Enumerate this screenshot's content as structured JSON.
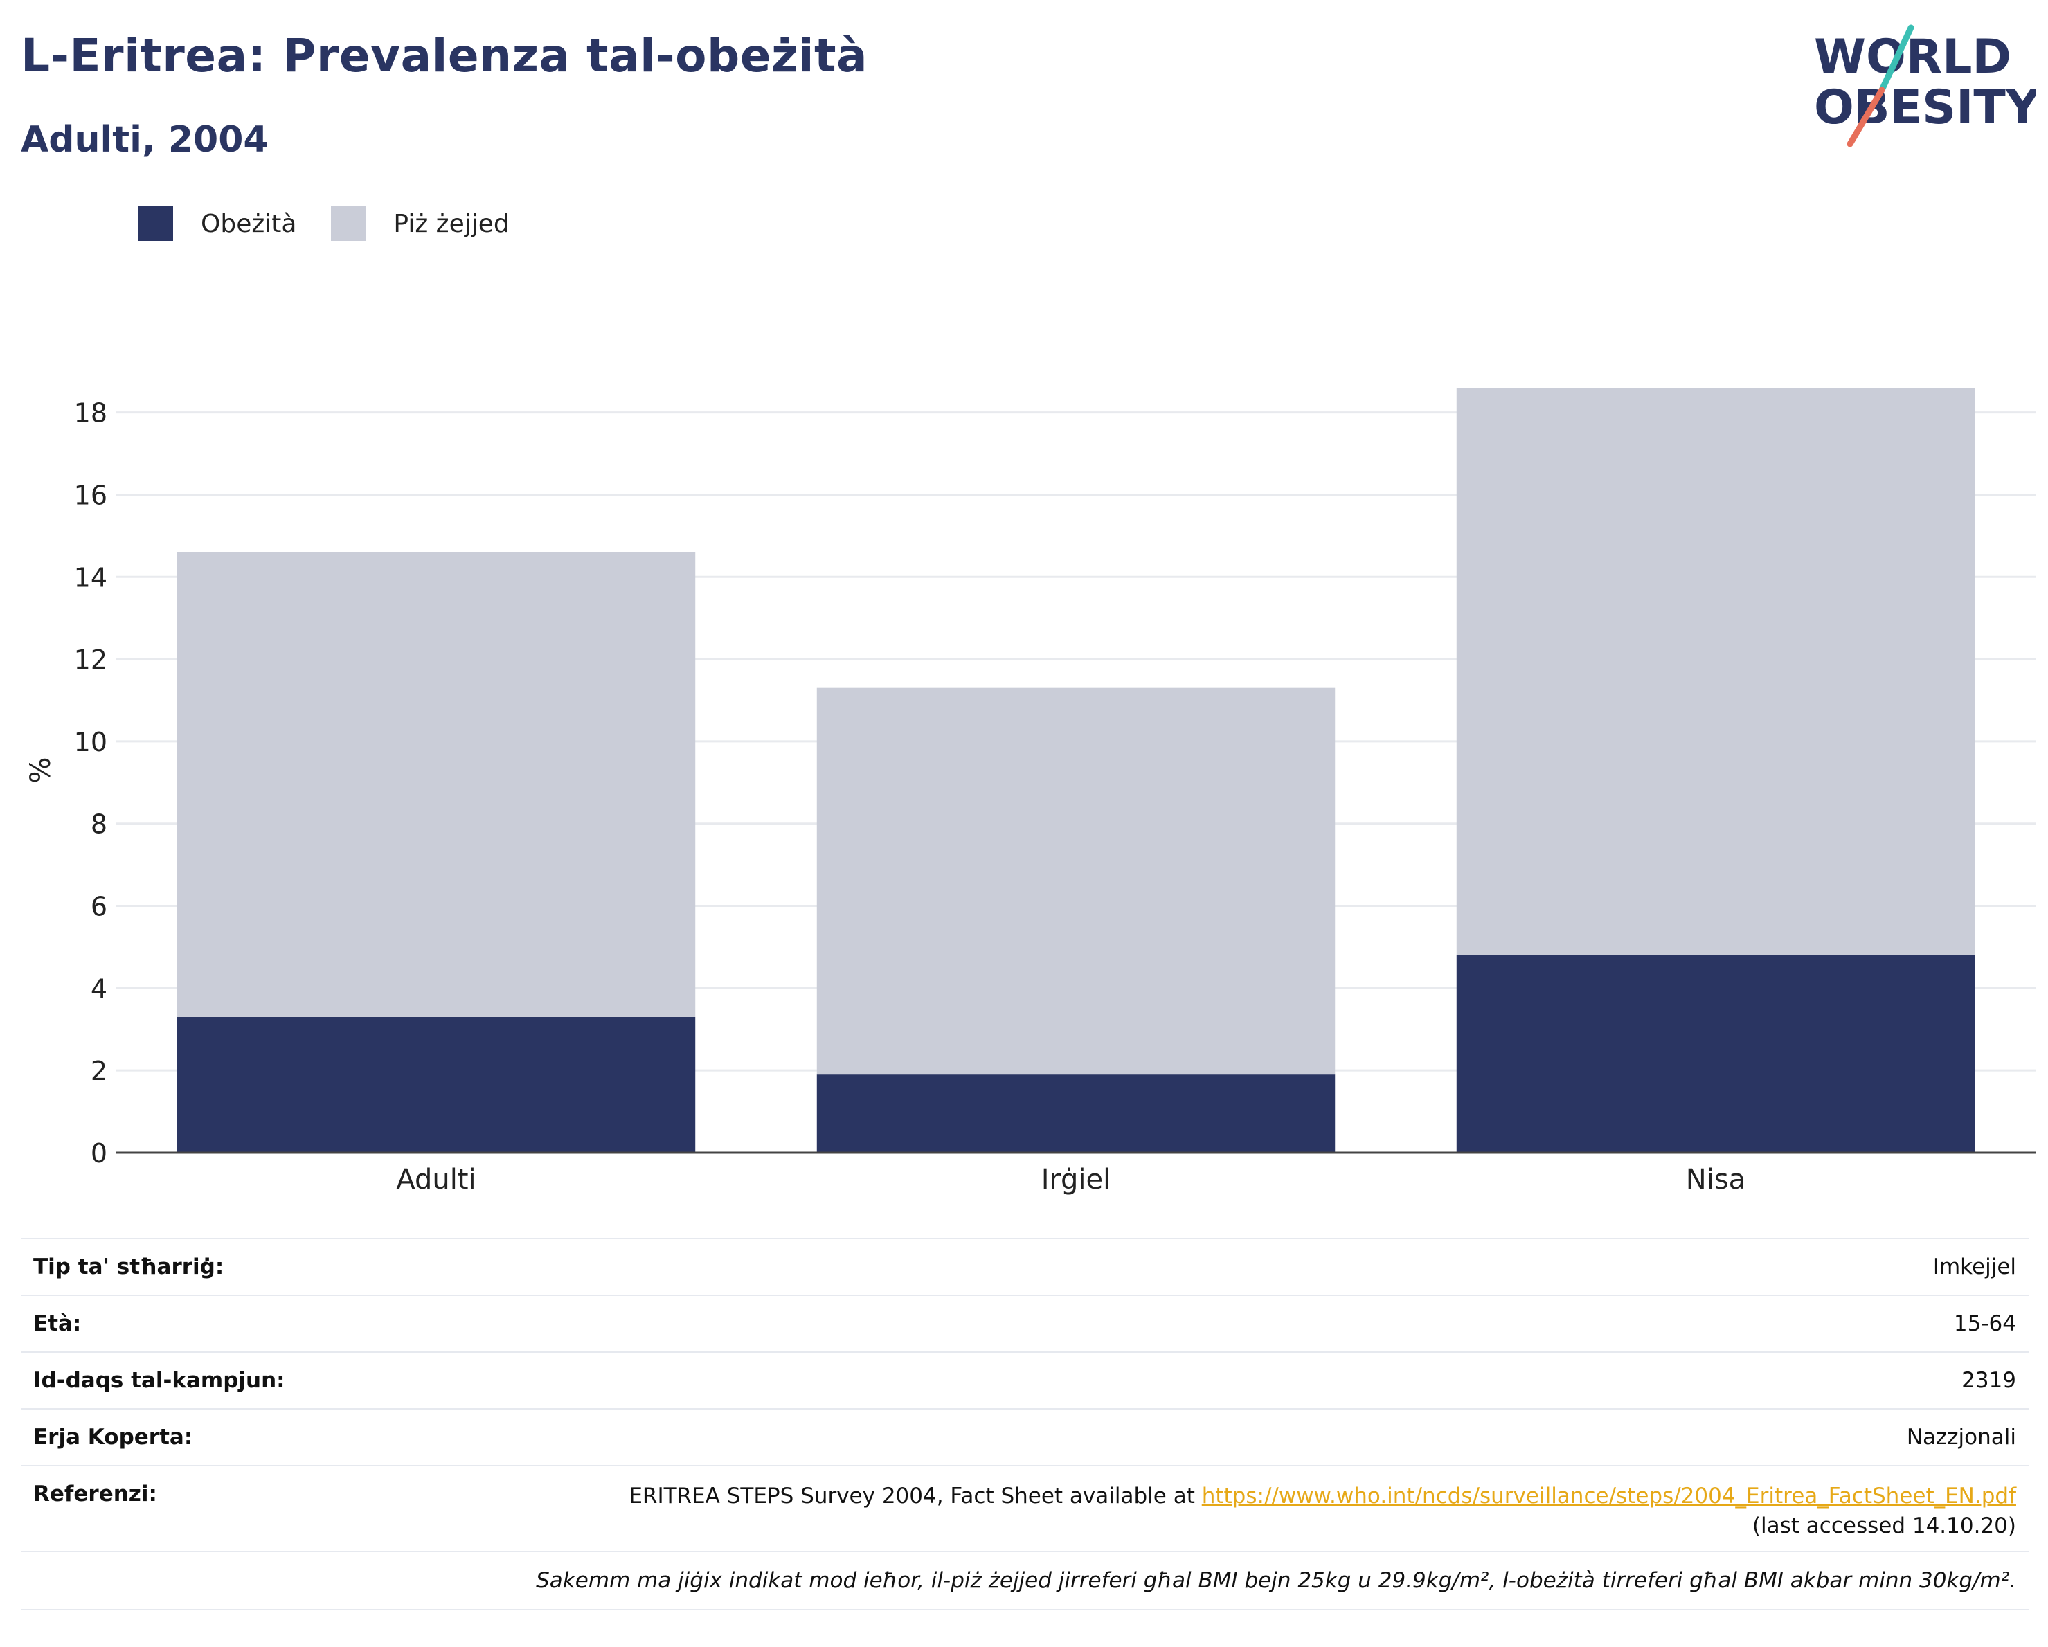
{
  "header": {
    "title": "L-Eritrea: Prevalenza tal-obeżità",
    "subtitle": "Adulti, 2004"
  },
  "logo": {
    "line1": "WORLD",
    "line2": "OBESITY",
    "colors": {
      "text": "#2a3562",
      "slash_top": "#3bbfb4",
      "slash_bottom": "#e76f5a"
    }
  },
  "legend": [
    {
      "label": "Obeżità",
      "color": "#2a3562"
    },
    {
      "label": "Piż żejjed",
      "color": "#cacdd8"
    }
  ],
  "chart_data": {
    "type": "bar",
    "stacked": true,
    "categories": [
      "Adulti",
      "Irġiel",
      "Nisa"
    ],
    "series": [
      {
        "name": "Obeżità",
        "values": [
          3.3,
          1.9,
          4.8
        ],
        "color": "#2a3562"
      },
      {
        "name": "Piż żejjed",
        "values": [
          11.3,
          9.4,
          13.8
        ],
        "color": "#cacdd8"
      }
    ],
    "ylabel": "%",
    "ylim": [
      0,
      18.6
    ],
    "yticks": [
      0,
      2,
      4,
      6,
      8,
      10,
      12,
      14,
      16,
      18
    ],
    "grid": true,
    "legend_position": "top-left"
  },
  "info": {
    "rows": [
      {
        "key": "Tip ta' stħarriġ:",
        "value": "Imkejjel"
      },
      {
        "key": "Età:",
        "value": "15-64"
      },
      {
        "key": "Id-daqs tal-kampjun:",
        "value": "2319"
      },
      {
        "key": "Erja Koperta:",
        "value": "Nazzjonali"
      }
    ],
    "reference": {
      "key": "Referenzi:",
      "text_before": "ERITREA STEPS Survey 2004, Fact Sheet available at ",
      "link": "https://www.who.int/ncds/surveillance/steps/2004_Eritrea_FactSheet_EN.pdf",
      "text_after": "(last accessed 14.10.20)"
    },
    "note": "Sakemm ma jiġix indikat mod ieħor, il-piż żejjed jirreferi għal BMI bejn 25kg u 29.9kg/m², l-obeżità tirreferi għal BMI akbar minn 30kg/m²."
  }
}
